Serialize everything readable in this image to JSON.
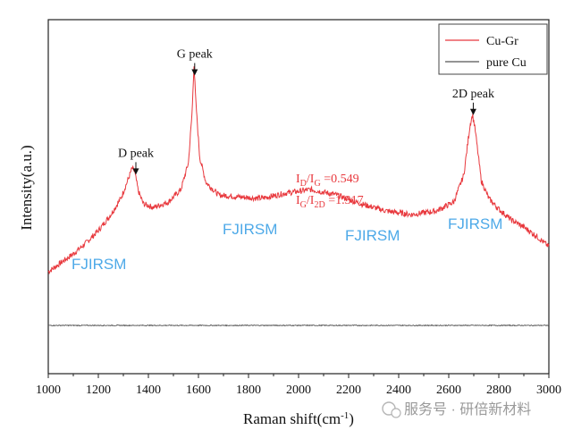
{
  "chart_data": {
    "type": "line",
    "title": "",
    "xlabel": "Raman shift(cm",
    "xlabel_sup": "-1",
    "xlabel_end": ")",
    "ylabel": "Intensity(a.u.)",
    "xlim": [
      1000,
      3000
    ],
    "x_ticks": [
      "1000",
      "1200",
      "1400",
      "1600",
      "1800",
      "2000",
      "2200",
      "2400",
      "2600",
      "2800",
      "3000"
    ],
    "grid": false,
    "legend_position": "top-right",
    "series": [
      {
        "name": "Cu-Gr",
        "color": "#e8383d",
        "x": [
          1000,
          1050,
          1100,
          1150,
          1200,
          1250,
          1290,
          1320,
          1335,
          1345,
          1360,
          1380,
          1420,
          1480,
          1530,
          1560,
          1575,
          1582,
          1590,
          1605,
          1630,
          1680,
          1750,
          1850,
          1950,
          2050,
          2150,
          2250,
          2350,
          2450,
          2550,
          2620,
          2660,
          2685,
          2695,
          2705,
          2730,
          2760,
          2800,
          2850,
          2900,
          2950,
          3000
        ],
        "y": [
          30,
          35,
          40,
          46,
          53,
          62,
          71,
          82,
          88,
          86,
          75,
          68,
          66,
          69,
          76,
          91,
          120,
          146,
          124,
          94,
          80,
          73,
          72,
          71,
          74,
          76,
          73,
          68,
          64,
          62,
          64,
          69,
          84,
          112,
          118,
          110,
          81,
          71,
          65,
          59,
          55,
          50,
          44
        ]
      },
      {
        "name": "pure Cu",
        "color": "#555555",
        "x": [
          1000,
          3000
        ],
        "y": [
          0,
          0
        ]
      }
    ],
    "annotations": [
      {
        "label": "G peak",
        "x": 1585
      },
      {
        "label": "D peak",
        "x": 1350
      },
      {
        "label": "2D peak",
        "x": 2698
      }
    ],
    "ratio_lines": [
      {
        "a": "I",
        "a_sub": "D",
        "sep": "/I",
        "b_sub": "G",
        "value": " =0.549"
      },
      {
        "a": "I",
        "a_sub": "G",
        "sep": "/I",
        "b_sub": "2D",
        "value": " =1.317"
      }
    ],
    "watermarks": [
      "FJIRSM",
      "FJIRSM",
      "FJIRSM",
      "FJIRSM"
    ],
    "footer_text": "服务号 · 研倍新材料"
  }
}
